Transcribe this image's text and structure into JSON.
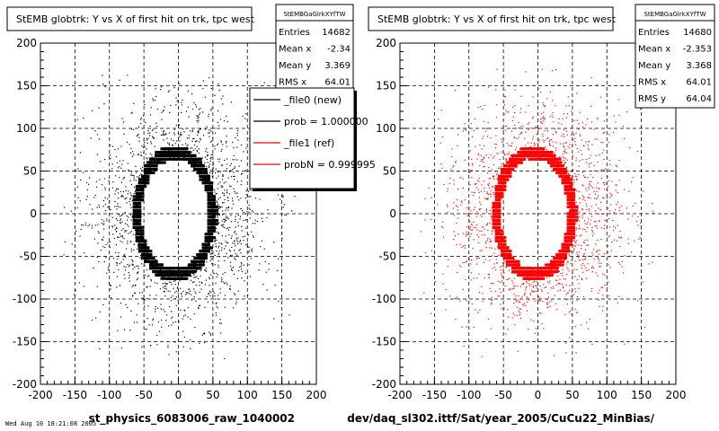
{
  "footer_text": "Wed Aug 10 18:21:08 2005",
  "chart_data": [
    {
      "type": "scatter",
      "title": "StEMB globtrk: Y vs X of first hit on trk, tpc west",
      "xlabel": "st_physics_6083006_raw_1040002",
      "ylabel": "",
      "xlim": [
        -200,
        200
      ],
      "ylim": [
        -200,
        200
      ],
      "xticks": [
        -200,
        -150,
        -100,
        -50,
        0,
        50,
        100,
        150,
        200
      ],
      "yticks": [
        -200,
        -150,
        -100,
        -50,
        0,
        50,
        100,
        150,
        200
      ],
      "grid": true,
      "marker_color": "#000000",
      "stats": {
        "name": "StEMBGaGlrkXYfTW",
        "rows": [
          {
            "label": "Entries",
            "value": "14682"
          },
          {
            "label": "Mean x",
            "value": "-2.34"
          },
          {
            "label": "Mean y",
            "value": "3.369"
          },
          {
            "label": "RMS x",
            "value": "64.01"
          }
        ]
      },
      "legend": {
        "placement": "top-right",
        "entries": [
          {
            "label": "_file0 (new)",
            "color": "#000000"
          },
          {
            "label": "prob = 1.000000",
            "color": "#000000"
          },
          {
            "label": "_file1 (ref)",
            "color": "#ff0000"
          },
          {
            "label": "probN = 0.999995",
            "color": "#ff0000"
          }
        ]
      },
      "distribution": {
        "hole_x": [
          -55,
          45
        ],
        "hole_y": [
          -65,
          65
        ],
        "ring_width": 10,
        "halo_extent": 170
      }
    },
    {
      "type": "scatter",
      "title": "StEMB globtrk: Y vs X of first hit on trk, tpc west",
      "xlabel": "dev/daq_sl302.ittf/Sat/year_2005/CuCu22_MinBias/",
      "ylabel": "",
      "xlim": [
        -200,
        200
      ],
      "ylim": [
        -200,
        200
      ],
      "xticks": [
        -200,
        -150,
        -100,
        -50,
        0,
        50,
        100,
        150,
        200
      ],
      "yticks": [
        -200,
        -150,
        -100,
        -50,
        0,
        50,
        100,
        150,
        200
      ],
      "grid": true,
      "marker_color": "#ff0000",
      "stats": {
        "name": "StEMBGaGlrkXYfTW",
        "rows": [
          {
            "label": "Entries",
            "value": "14680"
          },
          {
            "label": "Mean x",
            "value": "-2.353"
          },
          {
            "label": "Mean y",
            "value": "3.368"
          },
          {
            "label": "RMS x",
            "value": "64.01"
          },
          {
            "label": "RMS y",
            "value": "64.04"
          }
        ]
      },
      "distribution": {
        "hole_x": [
          -55,
          45
        ],
        "hole_y": [
          -65,
          65
        ],
        "ring_width": 10,
        "halo_extent": 170
      }
    }
  ]
}
